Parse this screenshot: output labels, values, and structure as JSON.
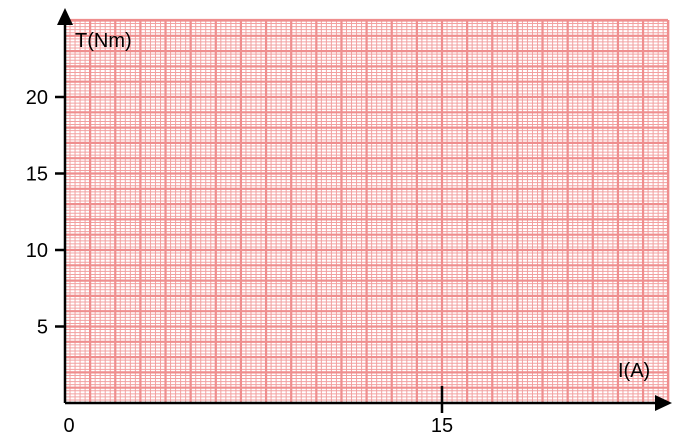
{
  "chart_data": {
    "type": "scatter",
    "title": "",
    "xlabel": "I(A)",
    "ylabel": "T(Nm)",
    "xlim": [
      0,
      24
    ],
    "ylim": [
      0,
      24.5
    ],
    "x_ticks": [
      {
        "value": 0,
        "label": "0"
      },
      {
        "value": 15,
        "label": "15"
      }
    ],
    "y_ticks": [
      {
        "value": 5,
        "label": "5"
      },
      {
        "value": 10,
        "label": "10"
      },
      {
        "value": 15,
        "label": "15"
      },
      {
        "value": 20,
        "label": "20"
      }
    ],
    "series": [],
    "grid": true,
    "grid_color": "#f2a0a0",
    "grid_major_color": "#ef8e8e",
    "axis_color": "#000000"
  }
}
